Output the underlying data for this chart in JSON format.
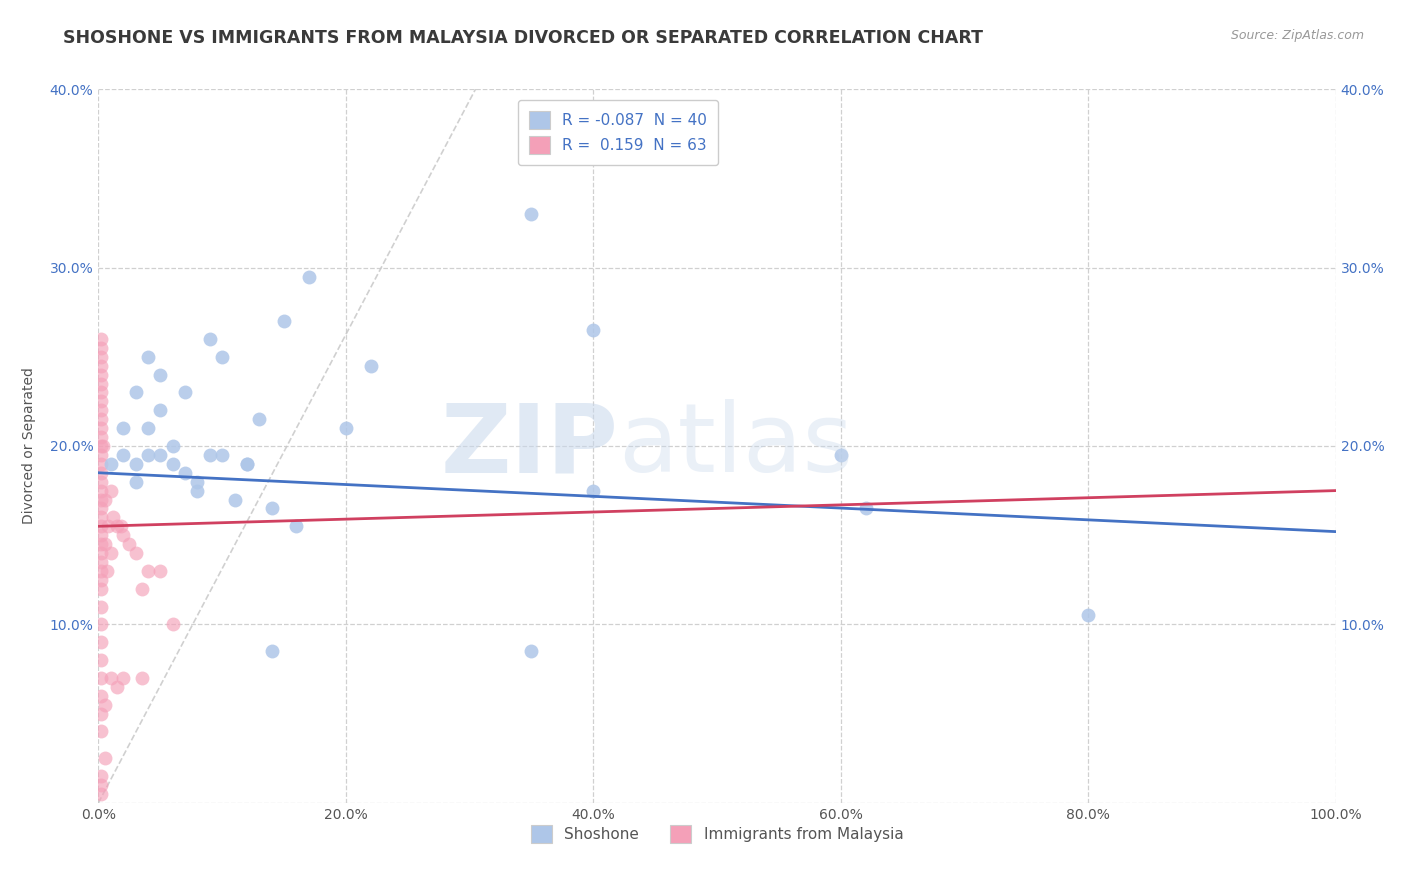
{
  "title": "SHOSHONE VS IMMIGRANTS FROM MALAYSIA DIVORCED OR SEPARATED CORRELATION CHART",
  "source_text": "Source: ZipAtlas.com",
  "ylabel": "Divorced or Separated",
  "xlim": [
    0,
    1.0
  ],
  "ylim": [
    0,
    0.4
  ],
  "xticks": [
    0.0,
    0.2,
    0.4,
    0.6,
    0.8,
    1.0
  ],
  "yticks": [
    0.0,
    0.1,
    0.2,
    0.3,
    0.4
  ],
  "xtick_labels": [
    "0.0%",
    "20.0%",
    "40.0%",
    "60.0%",
    "80.0%",
    "100.0%"
  ],
  "ytick_labels": [
    "",
    "10.0%",
    "20.0%",
    "30.0%",
    "40.0%"
  ],
  "shoshone_R": "-0.087",
  "shoshone_N": "40",
  "malaysia_R": "0.159",
  "malaysia_N": "63",
  "shoshone_scatter_color": "#aec6e8",
  "malaysia_scatter_color": "#f4a0b8",
  "shoshone_line_color": "#4472c4",
  "malaysia_line_color": "#d04060",
  "ref_line_color": "#c8c8c8",
  "background_color": "#ffffff",
  "grid_color": "#d0d0d0",
  "title_color": "#3a3a3a",
  "title_fontsize": 12.5,
  "axis_label_fontsize": 10,
  "tick_fontsize": 10,
  "legend_fontsize": 11,
  "shoshone_x": [
    0.01,
    0.02,
    0.03,
    0.03,
    0.04,
    0.04,
    0.05,
    0.05,
    0.06,
    0.07,
    0.08,
    0.09,
    0.1,
    0.11,
    0.12,
    0.13,
    0.15,
    0.17,
    0.2,
    0.22,
    0.02,
    0.03,
    0.04,
    0.05,
    0.06,
    0.07,
    0.08,
    0.09,
    0.1,
    0.12,
    0.14,
    0.16,
    0.4,
    0.4,
    0.6,
    0.62,
    0.8,
    0.35,
    0.35,
    0.14
  ],
  "shoshone_y": [
    0.19,
    0.21,
    0.23,
    0.19,
    0.25,
    0.21,
    0.22,
    0.24,
    0.2,
    0.23,
    0.18,
    0.26,
    0.25,
    0.17,
    0.19,
    0.215,
    0.27,
    0.295,
    0.21,
    0.245,
    0.195,
    0.18,
    0.195,
    0.195,
    0.19,
    0.185,
    0.175,
    0.195,
    0.195,
    0.19,
    0.165,
    0.155,
    0.265,
    0.175,
    0.195,
    0.165,
    0.105,
    0.33,
    0.085,
    0.085
  ],
  "malaysia_x": [
    0.002,
    0.002,
    0.002,
    0.002,
    0.002,
    0.002,
    0.002,
    0.002,
    0.002,
    0.002,
    0.002,
    0.002,
    0.002,
    0.002,
    0.002,
    0.002,
    0.002,
    0.002,
    0.002,
    0.002,
    0.002,
    0.002,
    0.002,
    0.002,
    0.002,
    0.002,
    0.002,
    0.002,
    0.002,
    0.002,
    0.002,
    0.002,
    0.002,
    0.002,
    0.002,
    0.002,
    0.002,
    0.002,
    0.002,
    0.002,
    0.004,
    0.005,
    0.005,
    0.007,
    0.008,
    0.01,
    0.01,
    0.012,
    0.015,
    0.018,
    0.02,
    0.025,
    0.03,
    0.035,
    0.04,
    0.05,
    0.06,
    0.015,
    0.02,
    0.035,
    0.01,
    0.005,
    0.005
  ],
  "malaysia_y": [
    0.04,
    0.05,
    0.06,
    0.07,
    0.08,
    0.09,
    0.1,
    0.11,
    0.12,
    0.125,
    0.13,
    0.135,
    0.14,
    0.145,
    0.15,
    0.155,
    0.16,
    0.165,
    0.17,
    0.175,
    0.18,
    0.185,
    0.19,
    0.195,
    0.2,
    0.205,
    0.21,
    0.215,
    0.22,
    0.225,
    0.23,
    0.235,
    0.24,
    0.245,
    0.25,
    0.255,
    0.26,
    0.005,
    0.01,
    0.015,
    0.2,
    0.145,
    0.17,
    0.13,
    0.155,
    0.14,
    0.175,
    0.16,
    0.155,
    0.155,
    0.15,
    0.145,
    0.14,
    0.12,
    0.13,
    0.13,
    0.1,
    0.065,
    0.07,
    0.07,
    0.07,
    0.055,
    0.025
  ]
}
